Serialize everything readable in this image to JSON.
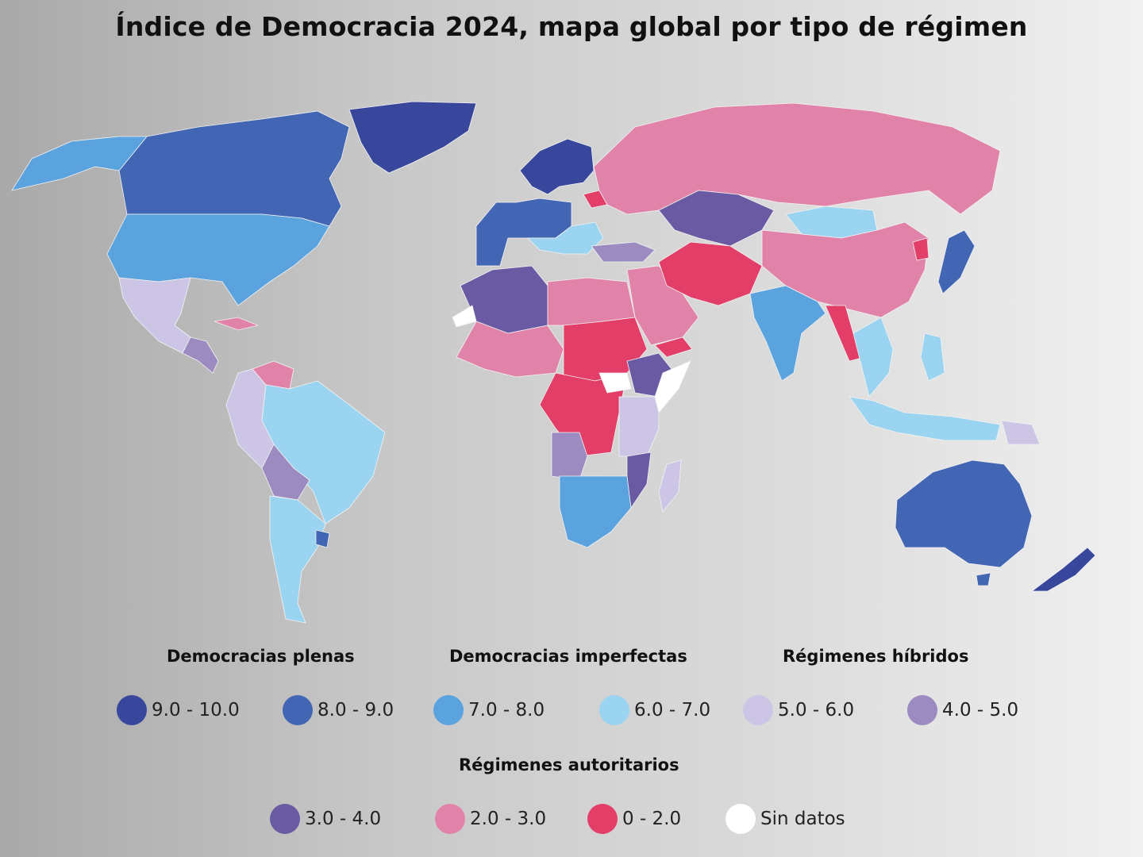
{
  "title": "Índice de Democracia 2024, mapa global por tipo de régimen",
  "colors": {
    "c9_10": "#38479c",
    "c8_9": "#4266b3",
    "c7_8": "#5aa3de",
    "c6_7": "#9ad4f1",
    "c5_6": "#cdc5e5",
    "c4_5": "#9b8bc0",
    "c3_4": "#6a5aa3",
    "c2_3": "#e183a8",
    "c0_2": "#e33e68",
    "none": "#ffffff"
  },
  "legend": {
    "groups": {
      "full": "Democracias plenas",
      "flawed": "Democracias imperfectas",
      "hybrid": "Régimenes híbridos",
      "authoritarian": "Régimenes autoritarios"
    },
    "items": [
      {
        "label": "9.0 - 10.0",
        "color": "#38479c"
      },
      {
        "label": "8.0 - 9.0",
        "color": "#4266b3"
      },
      {
        "label": "7.0 - 8.0",
        "color": "#5aa3de"
      },
      {
        "label": "6.0 - 7.0",
        "color": "#9ad4f1"
      },
      {
        "label": "5.0 - 6.0",
        "color": "#cdc5e5"
      },
      {
        "label": "4.0 - 5.0",
        "color": "#9b8bc0"
      },
      {
        "label": "3.0 - 4.0",
        "color": "#6a5aa3"
      },
      {
        "label": "2.0 - 3.0",
        "color": "#e183a8"
      },
      {
        "label": "0 - 2.0",
        "color": "#e33e68"
      },
      {
        "label": "Sin datos",
        "color": "#ffffff"
      }
    ]
  }
}
